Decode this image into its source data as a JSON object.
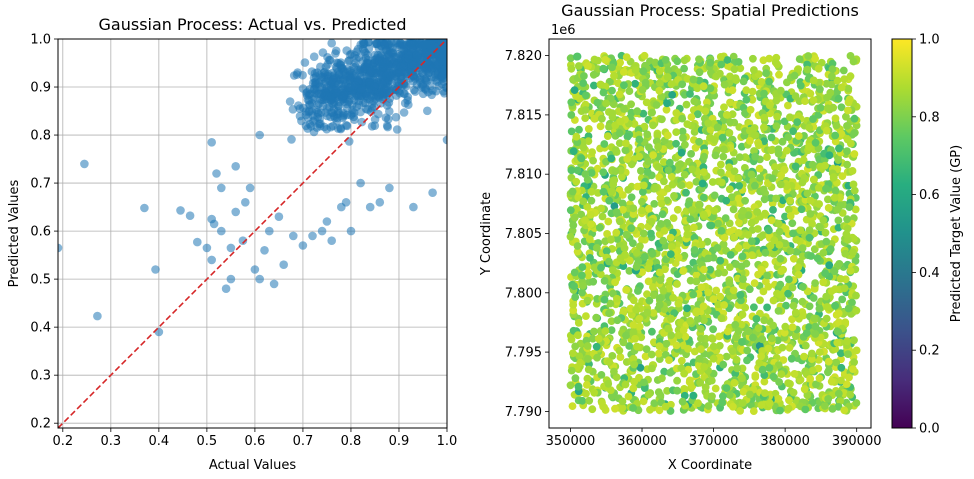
{
  "chart_data": [
    {
      "type": "scatter",
      "title": "Gaussian Process: Actual vs. Predicted",
      "xlabel": "Actual Values",
      "ylabel": "Predicted Values",
      "xlim": [
        0.19,
        1.0
      ],
      "ylim": [
        0.19,
        1.0
      ],
      "xticks": [
        "0.2",
        "0.3",
        "0.4",
        "0.5",
        "0.6",
        "0.7",
        "0.8",
        "0.9",
        "1.0"
      ],
      "yticks": [
        "0.2",
        "0.3",
        "0.4",
        "0.5",
        "0.6",
        "0.7",
        "0.8",
        "0.9",
        "1.0"
      ],
      "grid": true,
      "point_color": "#1f77b4",
      "reference_line": {
        "style": "dashed",
        "color": "#d62728",
        "from": [
          0.19,
          0.19
        ],
        "to": [
          1.0,
          1.0
        ]
      },
      "outlier_points": [
        [
          0.19,
          0.565
        ],
        [
          0.245,
          0.74
        ],
        [
          0.272,
          0.423
        ],
        [
          0.37,
          0.648
        ],
        [
          0.393,
          0.52
        ],
        [
          0.4,
          0.39
        ],
        [
          0.445,
          0.643
        ],
        [
          0.465,
          0.632
        ],
        [
          0.48,
          0.577
        ],
        [
          0.5,
          0.565
        ],
        [
          0.51,
          0.54
        ],
        [
          0.51,
          0.625
        ],
        [
          0.515,
          0.615
        ],
        [
          0.51,
          0.785
        ],
        [
          0.52,
          0.72
        ],
        [
          0.53,
          0.6
        ],
        [
          0.53,
          0.69
        ],
        [
          0.54,
          0.48
        ],
        [
          0.55,
          0.5
        ],
        [
          0.55,
          0.565
        ],
        [
          0.56,
          0.735
        ],
        [
          0.56,
          0.64
        ],
        [
          0.575,
          0.58
        ],
        [
          0.58,
          0.66
        ],
        [
          0.59,
          0.69
        ],
        [
          0.6,
          0.52
        ],
        [
          0.61,
          0.5
        ],
        [
          0.61,
          0.8
        ],
        [
          0.62,
          0.56
        ],
        [
          0.63,
          0.6
        ],
        [
          0.64,
          0.49
        ],
        [
          0.65,
          0.63
        ],
        [
          0.66,
          0.53
        ],
        [
          0.68,
          0.59
        ],
        [
          0.7,
          0.57
        ],
        [
          0.72,
          0.59
        ],
        [
          0.74,
          0.6
        ],
        [
          0.75,
          0.62
        ],
        [
          0.73,
          0.93
        ],
        [
          0.76,
          0.58
        ],
        [
          0.78,
          0.65
        ],
        [
          0.79,
          0.66
        ],
        [
          0.8,
          0.6
        ],
        [
          0.82,
          0.7
        ],
        [
          0.84,
          0.65
        ],
        [
          0.86,
          0.66
        ],
        [
          0.88,
          0.69
        ],
        [
          0.93,
          0.65
        ],
        [
          0.97,
          0.68
        ],
        [
          1.0,
          0.79
        ]
      ],
      "cluster_points": 1000,
      "cluster_description": "dense band along y = x from about 0.6 to 1.0"
    },
    {
      "type": "scatter",
      "title": "Gaussian Process: Spatial Predictions",
      "xlabel": "X Coordinate",
      "ylabel": "Y Coordinate",
      "offset_label": "1e6",
      "xlim": [
        347000,
        392000
      ],
      "ylim": [
        7788600,
        7821400
      ],
      "xticks": [
        "350000",
        "360000",
        "370000",
        "380000",
        "390000"
      ],
      "yticks": [
        "7.790",
        "7.795",
        "7.800",
        "7.805",
        "7.810",
        "7.815",
        "7.820"
      ],
      "data_extent": {
        "x": [
          350000,
          390000
        ],
        "y": [
          7790000,
          7820000
        ]
      },
      "point_count": 3000,
      "value_range": [
        0.0,
        1.0
      ],
      "typical_value_range": [
        0.6,
        1.0
      ],
      "grid": false,
      "colorbar": {
        "label": "Predicted Target Value (GP)",
        "colormap": "viridis",
        "ticks": [
          "0.0",
          "0.2",
          "0.4",
          "0.6",
          "0.8",
          "1.0"
        ],
        "range": [
          0.0,
          1.0
        ]
      }
    }
  ]
}
